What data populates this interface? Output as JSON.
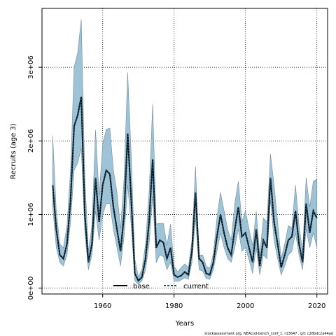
{
  "chart_data": {
    "type": "area",
    "title": "",
    "xlabel": "Years",
    "ylabel": "Recruits (age 3)",
    "xlim": [
      1943,
      2023
    ],
    "ylim": [
      -80000,
      3800000
    ],
    "x_ticks": [
      1960,
      1980,
      2000,
      2020
    ],
    "x_tick_labels": [
      "1960",
      "1980",
      "2000",
      "2020"
    ],
    "y_ticks": [
      0,
      1000000,
      2000000,
      3000000
    ],
    "y_tick_labels": [
      "0e+00",
      "1e+06",
      "2e+06",
      "3e+06"
    ],
    "grid": true,
    "legend_position": "bottom-left",
    "footer": "stockassessment.org, NEAcod-bench_conf_1, r13647 , git: c28bdc2a44ad",
    "colors": {
      "band": "#9fc3d6",
      "band_edge": "#6f8ea0",
      "line": "#000000",
      "current": "#1a4a66"
    },
    "series": [
      {
        "name": "base",
        "style": "solid",
        "x": [
          1946,
          1947,
          1948,
          1949,
          1950,
          1951,
          1952,
          1953,
          1954,
          1955,
          1956,
          1957,
          1958,
          1959,
          1960,
          1961,
          1962,
          1963,
          1964,
          1965,
          1966,
          1967,
          1968,
          1969,
          1970,
          1971,
          1972,
          1973,
          1974,
          1975,
          1976,
          1977,
          1978,
          1979,
          1980,
          1981,
          1982,
          1983,
          1984,
          1985,
          1986,
          1987,
          1988,
          1989,
          1990,
          1991,
          1992,
          1993,
          1994,
          1995,
          1996,
          1997,
          1998,
          1999,
          2000,
          2001,
          2002,
          2003,
          2004,
          2005,
          2006,
          2007,
          2008,
          2009,
          2010,
          2011,
          2012,
          2013,
          2014,
          2015,
          2016,
          2017,
          2018,
          2019,
          2020
        ],
        "values": [
          1400000,
          800000,
          450000,
          400000,
          600000,
          1200000,
          2200000,
          2350000,
          2600000,
          1000000,
          350000,
          600000,
          1500000,
          900000,
          1400000,
          1600000,
          1550000,
          1100000,
          800000,
          500000,
          1000000,
          2100000,
          1200000,
          200000,
          100000,
          150000,
          400000,
          900000,
          1750000,
          550000,
          650000,
          620000,
          400000,
          550000,
          180000,
          150000,
          170000,
          220000,
          180000,
          500000,
          1300000,
          400000,
          350000,
          200000,
          180000,
          350000,
          700000,
          1000000,
          750000,
          550000,
          450000,
          800000,
          1100000,
          700000,
          750000,
          550000,
          350000,
          800000,
          300000,
          650000,
          550000,
          1500000,
          900000,
          600000,
          280000,
          450000,
          650000,
          700000,
          1050000,
          600000,
          350000,
          1150000,
          750000,
          1050000,
          950000
        ]
      },
      {
        "name": "current",
        "style": "dashed",
        "x": [
          1946,
          1947,
          1948,
          1949,
          1950,
          1951,
          1952,
          1953,
          1954,
          1955,
          1956,
          1957,
          1958,
          1959,
          1960,
          1961,
          1962,
          1963,
          1964,
          1965,
          1966,
          1967,
          1968,
          1969,
          1970,
          1971,
          1972,
          1973,
          1974,
          1975,
          1976,
          1977,
          1978,
          1979,
          1980,
          1981,
          1982,
          1983,
          1984,
          1985,
          1986,
          1987,
          1988,
          1989,
          1990,
          1991,
          1992,
          1993,
          1994,
          1995,
          1996,
          1997,
          1998,
          1999,
          2000,
          2001,
          2002,
          2003,
          2004,
          2005,
          2006,
          2007,
          2008,
          2009,
          2010,
          2011,
          2012,
          2013,
          2014,
          2015,
          2016,
          2017,
          2018,
          2019,
          2020
        ],
        "values": [
          1400000,
          800000,
          450000,
          400000,
          600000,
          1200000,
          2200000,
          2350000,
          2600000,
          1000000,
          350000,
          600000,
          1500000,
          900000,
          1400000,
          1600000,
          1550000,
          1100000,
          800000,
          500000,
          1000000,
          2100000,
          1200000,
          200000,
          100000,
          150000,
          400000,
          900000,
          1750000,
          550000,
          650000,
          620000,
          400000,
          550000,
          180000,
          150000,
          170000,
          220000,
          180000,
          500000,
          1300000,
          400000,
          350000,
          200000,
          180000,
          350000,
          700000,
          1000000,
          750000,
          550000,
          450000,
          800000,
          1100000,
          700000,
          750000,
          550000,
          350000,
          800000,
          300000,
          650000,
          550000,
          1500000,
          900000,
          600000,
          280000,
          450000,
          650000,
          700000,
          1050000,
          600000,
          350000,
          1150000,
          750000,
          1050000,
          950000
        ]
      }
    ],
    "band": {
      "x": [
        1946,
        1947,
        1948,
        1949,
        1950,
        1951,
        1952,
        1953,
        1954,
        1955,
        1956,
        1957,
        1958,
        1959,
        1960,
        1961,
        1962,
        1963,
        1964,
        1965,
        1966,
        1967,
        1968,
        1969,
        1970,
        1971,
        1972,
        1973,
        1974,
        1975,
        1976,
        1977,
        1978,
        1979,
        1980,
        1981,
        1982,
        1983,
        1984,
        1985,
        1986,
        1987,
        1988,
        1989,
        1990,
        1991,
        1992,
        1993,
        1994,
        1995,
        1996,
        1997,
        1998,
        1999,
        2000,
        2001,
        2002,
        2003,
        2004,
        2005,
        2006,
        2007,
        2008,
        2009,
        2010,
        2011,
        2012,
        2013,
        2014,
        2015,
        2016,
        2017,
        2018,
        2019,
        2020
      ],
      "upper": [
        2070000,
        1050000,
        600000,
        550000,
        850000,
        1600000,
        3000000,
        3200000,
        3650000,
        1500000,
        500000,
        850000,
        2150000,
        1250000,
        1950000,
        2160000,
        2170000,
        1600000,
        1300000,
        800000,
        1500000,
        2930000,
        1800000,
        400000,
        150000,
        250000,
        600000,
        1300000,
        2500000,
        870000,
        880000,
        880000,
        580000,
        870000,
        300000,
        220000,
        280000,
        330000,
        280000,
        650000,
        1650000,
        450000,
        450000,
        300000,
        270000,
        470000,
        950000,
        1300000,
        1050000,
        800000,
        650000,
        1150000,
        1450000,
        900000,
        1050000,
        800000,
        580000,
        1050000,
        450000,
        950000,
        900000,
        1820000,
        1400000,
        900000,
        400000,
        600000,
        850000,
        820000,
        1400000,
        850000,
        500000,
        1500000,
        1100000,
        1450000,
        1480000
      ],
      "lower": [
        1100000,
        550000,
        350000,
        300000,
        450000,
        900000,
        1600000,
        1700000,
        1900000,
        750000,
        250000,
        450000,
        1050000,
        650000,
        1000000,
        1150000,
        1150000,
        800000,
        550000,
        300000,
        700000,
        1400000,
        850000,
        100000,
        50000,
        100000,
        250000,
        600000,
        1250000,
        350000,
        450000,
        430000,
        250000,
        350000,
        100000,
        90000,
        110000,
        140000,
        120000,
        350000,
        950000,
        250000,
        230000,
        130000,
        120000,
        250000,
        500000,
        750000,
        550000,
        400000,
        350000,
        550000,
        800000,
        500000,
        550000,
        380000,
        200000,
        550000,
        180000,
        450000,
        400000,
        1200000,
        650000,
        400000,
        180000,
        300000,
        450000,
        500000,
        750000,
        450000,
        250000,
        800000,
        550000,
        750000,
        550000
      ]
    }
  }
}
